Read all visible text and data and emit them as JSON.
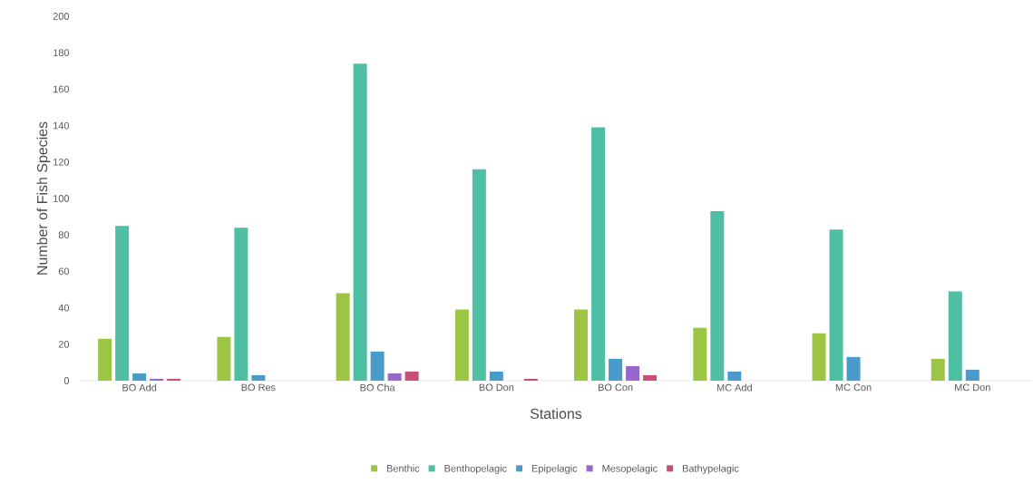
{
  "chart_data": {
    "type": "bar",
    "xlabel": "Stations",
    "ylabel": "Number of Fish Species",
    "categories": [
      "BO Add",
      "BO Res",
      "BO Cha",
      "BO Don",
      "BO Con",
      "MC Add",
      "MC Con",
      "MC Don"
    ],
    "series": [
      {
        "name": "Benthic",
        "color": "#9dc544",
        "values": [
          23,
          24,
          48,
          39,
          39,
          29,
          26,
          12
        ]
      },
      {
        "name": "Benthopelagic",
        "color": "#4fbfa3",
        "values": [
          85,
          84,
          174,
          116,
          139,
          93,
          83,
          49
        ]
      },
      {
        "name": "Epipelagic",
        "color": "#4a9bcc",
        "values": [
          4,
          3,
          16,
          5,
          12,
          5,
          13,
          6
        ]
      },
      {
        "name": "Mesopelagic",
        "color": "#9966cc",
        "values": [
          1,
          0,
          4,
          0,
          8,
          0,
          0,
          0
        ]
      },
      {
        "name": "Bathypelagic",
        "color": "#c84f72",
        "values": [
          1,
          0,
          5,
          1,
          3,
          0,
          0,
          0
        ]
      }
    ],
    "ylim": [
      0,
      200
    ],
    "yticks": [
      0,
      20,
      40,
      60,
      80,
      100,
      120,
      140,
      160,
      180,
      200
    ],
    "grid": false,
    "legend": "bottom"
  }
}
